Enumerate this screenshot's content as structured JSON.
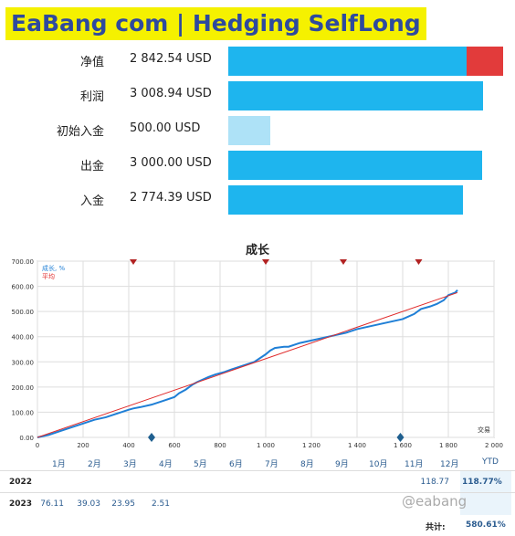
{
  "header": {
    "title": "EaBang com | Hedging SelfLong"
  },
  "stats": [
    {
      "label": "净值",
      "value": "2 842.54 USD"
    },
    {
      "label": "利润",
      "value": "3 008.94 USD"
    },
    {
      "label": "初始入金",
      "value": "500.00 USD"
    },
    {
      "label": "出金",
      "value": "3 000.00 USD"
    },
    {
      "label": "入金",
      "value": "2 774.39 USD"
    }
  ],
  "colors": {
    "bar": "#1eb5ee",
    "bar_light": "#aee2f7",
    "bar_negative": "#e23b3b",
    "series_growth": "#1f7fd6",
    "series_trend": "#e02a2a",
    "marker": "#b22222",
    "marker_blue": "#1f5f8f"
  },
  "chart_data": {
    "type": "line",
    "title": "成长",
    "xlabel": "交易",
    "ylabel": "",
    "xlim": [
      0,
      2000
    ],
    "ylim": [
      0,
      700
    ],
    "xticks": [
      "0",
      "200",
      "400",
      "600",
      "800",
      "1 000",
      "1 200",
      "1 400",
      "1 600",
      "1 800",
      "2 000"
    ],
    "yticks": [
      "0.00",
      "100.00",
      "200.00",
      "300.00",
      "400.00",
      "500.00",
      "600.00",
      "700.00"
    ],
    "grid": true,
    "legend_position": "top-left",
    "series": [
      {
        "name": "成长, %",
        "x": [
          0,
          50,
          100,
          150,
          200,
          250,
          300,
          350,
          400,
          420,
          450,
          500,
          550,
          600,
          620,
          650,
          680,
          700,
          750,
          780,
          820,
          850,
          900,
          950,
          1000,
          1020,
          1040,
          1080,
          1100,
          1150,
          1200,
          1250,
          1300,
          1350,
          1400,
          1450,
          1500,
          1550,
          1600,
          1650,
          1680,
          1720,
          1750,
          1780,
          1800,
          1830,
          1840
        ],
        "y": [
          0,
          10,
          25,
          40,
          55,
          70,
          80,
          95,
          110,
          115,
          120,
          130,
          145,
          160,
          175,
          190,
          210,
          220,
          240,
          250,
          260,
          270,
          285,
          300,
          330,
          345,
          355,
          360,
          360,
          375,
          385,
          395,
          405,
          415,
          430,
          440,
          450,
          460,
          470,
          490,
          510,
          520,
          530,
          545,
          565,
          575,
          585
        ]
      },
      {
        "name": "平均",
        "x": [
          0,
          1840
        ],
        "y": [
          0,
          575
        ]
      }
    ],
    "markers_top": [
      420,
      1000,
      1340,
      1670
    ],
    "markers_bottom": [
      500,
      1590
    ]
  },
  "months": [
    "1月",
    "2月",
    "3月",
    "4月",
    "5月",
    "6月",
    "7月",
    "8月",
    "9月",
    "10月",
    "11月",
    "12月"
  ],
  "ytd_header": "YTD",
  "years": [
    {
      "year": "2022",
      "values": [
        "",
        "",
        "",
        "",
        "",
        "",
        "",
        "",
        "",
        "",
        "",
        "118.77"
      ],
      "ytd": "118.77%"
    },
    {
      "year": "2023",
      "values": [
        "76.11",
        "39.03",
        "23.95",
        "2.51",
        "",
        "",
        "",
        "",
        "",
        "",
        "",
        ""
      ],
      "ytd": ""
    }
  ],
  "total": {
    "label": "共计:",
    "value": "580.61%"
  },
  "watermark": "@eabang"
}
